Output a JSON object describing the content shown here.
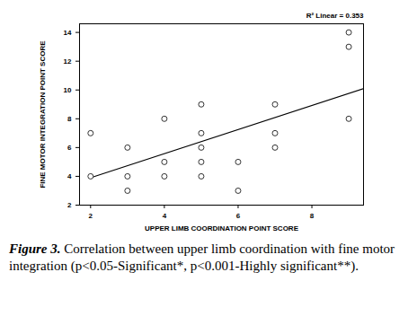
{
  "chart_data": {
    "type": "scatter",
    "x_label": "UPPER LIMB COORDINATION POINT SCORE",
    "y_label": "FINE MOTOR INTEGRATION POINT SCORE",
    "annotation": "R² Linear = 0.353",
    "figure_label": "Figure 3.",
    "caption": "Correlation between upper limb coordination with fine motor integration (p<0.05-Significant*, p<0.001-Highly significant**).",
    "x": [
      2,
      2,
      3,
      3,
      3,
      4,
      4,
      4,
      5,
      5,
      5,
      5,
      5,
      6,
      6,
      7,
      7,
      7,
      9,
      9,
      9
    ],
    "values": [
      7,
      4,
      6,
      4,
      3,
      8,
      5,
      4,
      9,
      7,
      6,
      5,
      4,
      5,
      3,
      9,
      7,
      6,
      14,
      13,
      8
    ],
    "fit_line": {
      "x": [
        2,
        9.4
      ],
      "y": [
        3.9,
        10.1
      ]
    },
    "marker": "open_circle",
    "color": "#333333",
    "xlim": [
      1.7,
      9.4
    ],
    "xticks": [
      2,
      4,
      6,
      8
    ],
    "ylim": [
      2,
      14.6
    ],
    "yticks": [
      2,
      4,
      6,
      8,
      10,
      12,
      14
    ],
    "grid": false
  }
}
